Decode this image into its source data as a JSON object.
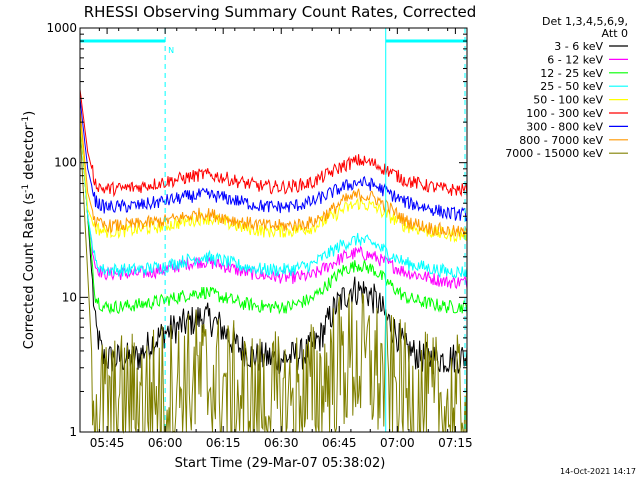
{
  "chart_data": {
    "type": "line",
    "title": "RHESSI Observing Summary Count Rates, Corrected",
    "xlabel": "Start Time (29-Mar-07 05:38:02)",
    "ylabel_main": "Corrected Count Rate (s",
    "ylabel_sup1": "-1",
    "ylabel_mid": " detector",
    "ylabel_sup2": "-1",
    "ylabel_end": ")",
    "yscale": "log",
    "ylim": [
      1,
      1000
    ],
    "xlim_minutes": [
      0,
      100
    ],
    "x_tick_labels": [
      {
        "label": "05:45",
        "minute": 7
      },
      {
        "label": "06:00",
        "minute": 22
      },
      {
        "label": "06:15",
        "minute": 37
      },
      {
        "label": "06:30",
        "minute": 52
      },
      {
        "label": "06:45",
        "minute": 67
      },
      {
        "label": "07:00",
        "minute": 82
      },
      {
        "label": "07:15",
        "minute": 97
      }
    ],
    "y_tick_labels": [
      {
        "label": "1",
        "value": 1
      },
      {
        "label": "10",
        "value": 10
      },
      {
        "label": "100",
        "value": 100
      },
      {
        "label": "1000",
        "value": 1000
      }
    ],
    "legend_header": [
      "Det 1,3,4,5,6,9,",
      "Att 0"
    ],
    "legend_placement": "right",
    "annotations": [
      {
        "text": "N",
        "minute": 22,
        "value": 700
      }
    ],
    "night_periods": [
      {
        "start_minute": 0,
        "end_minute": 22
      },
      {
        "start_minute": 79,
        "end_minute": 100
      }
    ],
    "timestamp": "14-Oct-2021 14:17",
    "series": [
      {
        "name": "3 - 6 keV",
        "color": "#000000",
        "values": [
          [
            0,
            220
          ],
          [
            2,
            40
          ],
          [
            4,
            6
          ],
          [
            6,
            3.5
          ],
          [
            10,
            3.5
          ],
          [
            15,
            3.6
          ],
          [
            18,
            4.5
          ],
          [
            22,
            5.5
          ],
          [
            28,
            6.5
          ],
          [
            32,
            7.2
          ],
          [
            36,
            6.2
          ],
          [
            40,
            4.5
          ],
          [
            45,
            3.6
          ],
          [
            52,
            3.5
          ],
          [
            58,
            3.8
          ],
          [
            62,
            5
          ],
          [
            66,
            8.5
          ],
          [
            70,
            11.5
          ],
          [
            74,
            11
          ],
          [
            77,
            9
          ],
          [
            80,
            6.5
          ],
          [
            84,
            4.2
          ],
          [
            88,
            3.6
          ],
          [
            94,
            3.5
          ],
          [
            100,
            3.6
          ]
        ]
      },
      {
        "name": "6 - 12 keV",
        "color": "#ff00ff",
        "values": [
          [
            0,
            220
          ],
          [
            2,
            40
          ],
          [
            4,
            17
          ],
          [
            6,
            15
          ],
          [
            10,
            15
          ],
          [
            15,
            15
          ],
          [
            22,
            16
          ],
          [
            28,
            18
          ],
          [
            32,
            18.5
          ],
          [
            36,
            17.5
          ],
          [
            42,
            15.5
          ],
          [
            48,
            14.5
          ],
          [
            54,
            14
          ],
          [
            60,
            14.5
          ],
          [
            64,
            17
          ],
          [
            68,
            20
          ],
          [
            72,
            21.5
          ],
          [
            76,
            20
          ],
          [
            80,
            17.5
          ],
          [
            84,
            15.5
          ],
          [
            90,
            14
          ],
          [
            95,
            13
          ],
          [
            100,
            13
          ]
        ]
      },
      {
        "name": "12 - 25 keV",
        "color": "#00ff00",
        "values": [
          [
            0,
            220
          ],
          [
            2,
            40
          ],
          [
            4,
            10
          ],
          [
            6,
            8.5
          ],
          [
            10,
            8.5
          ],
          [
            15,
            8.8
          ],
          [
            22,
            9.5
          ],
          [
            28,
            10.5
          ],
          [
            32,
            11
          ],
          [
            36,
            10.2
          ],
          [
            42,
            9
          ],
          [
            48,
            8.5
          ],
          [
            54,
            8.5
          ],
          [
            60,
            9.8
          ],
          [
            64,
            12.5
          ],
          [
            68,
            16
          ],
          [
            72,
            17.5
          ],
          [
            76,
            16
          ],
          [
            80,
            12.5
          ],
          [
            84,
            10
          ],
          [
            90,
            9
          ],
          [
            95,
            8.5
          ],
          [
            100,
            8.5
          ]
        ]
      },
      {
        "name": "25 - 50 keV",
        "color": "#00ffff",
        "values": [
          [
            0,
            220
          ],
          [
            2,
            40
          ],
          [
            4,
            18
          ],
          [
            6,
            16
          ],
          [
            10,
            16
          ],
          [
            15,
            16
          ],
          [
            22,
            17
          ],
          [
            28,
            19
          ],
          [
            32,
            20
          ],
          [
            36,
            19
          ],
          [
            42,
            17
          ],
          [
            48,
            16
          ],
          [
            54,
            16
          ],
          [
            60,
            17.5
          ],
          [
            64,
            21
          ],
          [
            68,
            25
          ],
          [
            72,
            27
          ],
          [
            76,
            25
          ],
          [
            80,
            21
          ],
          [
            84,
            18
          ],
          [
            90,
            16.5
          ],
          [
            95,
            15.5
          ],
          [
            100,
            15.5
          ]
        ]
      },
      {
        "name": "50 - 100 keV",
        "color": "#ffff00",
        "values": [
          [
            0,
            220
          ],
          [
            2,
            45
          ],
          [
            4,
            33
          ],
          [
            6,
            31
          ],
          [
            10,
            31
          ],
          [
            15,
            32
          ],
          [
            22,
            34
          ],
          [
            28,
            37
          ],
          [
            32,
            39
          ],
          [
            36,
            37
          ],
          [
            42,
            33
          ],
          [
            48,
            31
          ],
          [
            54,
            31
          ],
          [
            60,
            33
          ],
          [
            64,
            38
          ],
          [
            68,
            45
          ],
          [
            72,
            50
          ],
          [
            76,
            47
          ],
          [
            80,
            40
          ],
          [
            84,
            34
          ],
          [
            90,
            31
          ],
          [
            95,
            29
          ],
          [
            100,
            29
          ]
        ]
      },
      {
        "name": "100 - 300 keV",
        "color": "#ff0000",
        "values": [
          [
            0,
            350
          ],
          [
            2,
            120
          ],
          [
            4,
            70
          ],
          [
            6,
            64
          ],
          [
            10,
            64
          ],
          [
            15,
            66
          ],
          [
            22,
            72
          ],
          [
            28,
            78
          ],
          [
            32,
            82
          ],
          [
            36,
            79
          ],
          [
            42,
            71
          ],
          [
            48,
            66
          ],
          [
            54,
            66
          ],
          [
            60,
            71
          ],
          [
            64,
            82
          ],
          [
            68,
            95
          ],
          [
            72,
            104
          ],
          [
            76,
            98
          ],
          [
            80,
            86
          ],
          [
            84,
            74
          ],
          [
            90,
            67
          ],
          [
            95,
            63
          ],
          [
            100,
            63
          ]
        ]
      },
      {
        "name": "300 - 800 keV",
        "color": "#0000ff",
        "values": [
          [
            0,
            300
          ],
          [
            2,
            90
          ],
          [
            4,
            52
          ],
          [
            6,
            47
          ],
          [
            10,
            47
          ],
          [
            15,
            48
          ],
          [
            22,
            52
          ],
          [
            28,
            56
          ],
          [
            32,
            58
          ],
          [
            36,
            56
          ],
          [
            42,
            51
          ],
          [
            48,
            47
          ],
          [
            54,
            47
          ],
          [
            60,
            51
          ],
          [
            64,
            58
          ],
          [
            68,
            66
          ],
          [
            72,
            72
          ],
          [
            76,
            68
          ],
          [
            80,
            59
          ],
          [
            84,
            51
          ],
          [
            90,
            46
          ],
          [
            95,
            42
          ],
          [
            100,
            41
          ]
        ]
      },
      {
        "name": "800 - 7000 keV",
        "color": "#ff9900",
        "values": [
          [
            0,
            250
          ],
          [
            2,
            60
          ],
          [
            4,
            36
          ],
          [
            6,
            34
          ],
          [
            10,
            34
          ],
          [
            15,
            35
          ],
          [
            22,
            37
          ],
          [
            28,
            40
          ],
          [
            32,
            42
          ],
          [
            36,
            40
          ],
          [
            42,
            36
          ],
          [
            48,
            34
          ],
          [
            54,
            34
          ],
          [
            60,
            36
          ],
          [
            64,
            42
          ],
          [
            68,
            52
          ],
          [
            72,
            58
          ],
          [
            76,
            55
          ],
          [
            80,
            46
          ],
          [
            84,
            37
          ],
          [
            90,
            33
          ],
          [
            95,
            31
          ],
          [
            100,
            30
          ]
        ]
      },
      {
        "name": "7000 - 15000 keV",
        "color": "#808000",
        "values": [
          [
            0,
            180
          ],
          [
            2,
            15
          ],
          [
            3,
            4
          ],
          [
            4,
            1.6
          ],
          [
            8,
            1.5
          ],
          [
            14,
            1.7
          ],
          [
            20,
            1.9
          ],
          [
            26,
            2.2
          ],
          [
            30,
            2.5
          ],
          [
            34,
            2.4
          ],
          [
            40,
            1.9
          ],
          [
            46,
            1.6
          ],
          [
            52,
            1.6
          ],
          [
            58,
            1.8
          ],
          [
            62,
            2.2
          ],
          [
            66,
            3.0
          ],
          [
            70,
            3.4
          ],
          [
            74,
            3.2
          ],
          [
            78,
            2.6
          ],
          [
            82,
            2.0
          ],
          [
            88,
            1.6
          ],
          [
            94,
            1.5
          ],
          [
            100,
            1.5
          ]
        ]
      }
    ]
  }
}
